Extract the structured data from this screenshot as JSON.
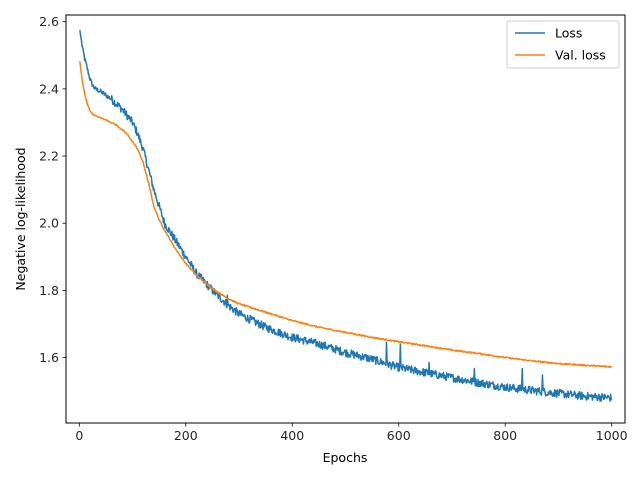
{
  "chart_data": {
    "type": "line",
    "title": "",
    "xlabel": "Epochs",
    "ylabel": "Negative log-likelihood",
    "xlim": [
      -25,
      1025
    ],
    "ylim": [
      1.405,
      2.62
    ],
    "xticks": [
      0,
      200,
      400,
      600,
      800,
      1000
    ],
    "yticks": [
      1.6,
      1.8,
      2.0,
      2.2,
      2.4,
      2.6
    ],
    "grid": false,
    "legend_position": "top-right",
    "series": [
      {
        "name": "Loss",
        "color": "#1f77b4",
        "noise": 0.012,
        "spikes": [
          [
            278,
            1.785
          ],
          [
            577,
            1.645
          ],
          [
            603,
            1.64
          ],
          [
            657,
            1.585
          ],
          [
            742,
            1.567
          ],
          [
            832,
            1.567
          ],
          [
            870,
            1.548
          ]
        ],
        "points": [
          [
            1,
            2.575
          ],
          [
            5,
            2.53
          ],
          [
            10,
            2.49
          ],
          [
            15,
            2.46
          ],
          [
            20,
            2.43
          ],
          [
            25,
            2.41
          ],
          [
            30,
            2.4
          ],
          [
            40,
            2.392
          ],
          [
            60,
            2.37
          ],
          [
            80,
            2.34
          ],
          [
            100,
            2.3
          ],
          [
            110,
            2.265
          ],
          [
            120,
            2.22
          ],
          [
            130,
            2.16
          ],
          [
            140,
            2.1
          ],
          [
            150,
            2.05
          ],
          [
            160,
            2.0
          ],
          [
            180,
            1.95
          ],
          [
            200,
            1.9
          ],
          [
            220,
            1.85
          ],
          [
            250,
            1.8
          ],
          [
            280,
            1.755
          ],
          [
            300,
            1.73
          ],
          [
            350,
            1.69
          ],
          [
            400,
            1.66
          ],
          [
            450,
            1.64
          ],
          [
            500,
            1.615
          ],
          [
            550,
            1.595
          ],
          [
            600,
            1.57
          ],
          [
            650,
            1.555
          ],
          [
            700,
            1.54
          ],
          [
            750,
            1.525
          ],
          [
            800,
            1.512
          ],
          [
            850,
            1.502
          ],
          [
            900,
            1.493
          ],
          [
            950,
            1.485
          ],
          [
            1000,
            1.48
          ]
        ]
      },
      {
        "name": "Val. loss",
        "color": "#ff7f0e",
        "noise": 0.002,
        "spikes": [],
        "points": [
          [
            1,
            2.482
          ],
          [
            5,
            2.43
          ],
          [
            10,
            2.385
          ],
          [
            15,
            2.355
          ],
          [
            20,
            2.335
          ],
          [
            25,
            2.325
          ],
          [
            30,
            2.32
          ],
          [
            50,
            2.308
          ],
          [
            70,
            2.292
          ],
          [
            90,
            2.265
          ],
          [
            110,
            2.22
          ],
          [
            120,
            2.18
          ],
          [
            130,
            2.12
          ],
          [
            140,
            2.05
          ],
          [
            150,
            2.01
          ],
          [
            160,
            1.98
          ],
          [
            180,
            1.925
          ],
          [
            200,
            1.88
          ],
          [
            220,
            1.845
          ],
          [
            250,
            1.805
          ],
          [
            280,
            1.775
          ],
          [
            300,
            1.76
          ],
          [
            350,
            1.735
          ],
          [
            400,
            1.71
          ],
          [
            450,
            1.69
          ],
          [
            500,
            1.675
          ],
          [
            550,
            1.66
          ],
          [
            600,
            1.647
          ],
          [
            650,
            1.635
          ],
          [
            700,
            1.622
          ],
          [
            750,
            1.612
          ],
          [
            800,
            1.6
          ],
          [
            850,
            1.59
          ],
          [
            900,
            1.582
          ],
          [
            950,
            1.577
          ],
          [
            1000,
            1.572
          ]
        ]
      }
    ]
  }
}
